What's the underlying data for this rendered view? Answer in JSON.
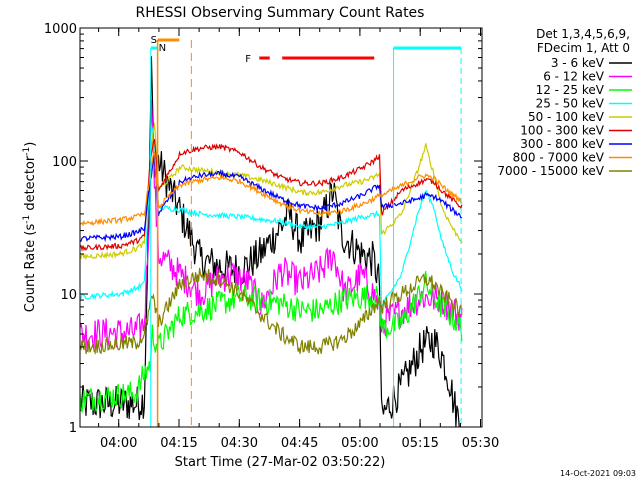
{
  "chart_data": {
    "type": "line",
    "title": "RHESSI Observing Summary Count Rates",
    "xlabel": "Start Time (27-Mar-02 03:50:22)",
    "ylabel_main": "Count Rate (s",
    "ylabel_sup1": "-1",
    "ylabel_mid": " detector",
    "ylabel_sup2": "-1",
    "ylabel_end": ")",
    "x_unit": "minutes since 03:50:22",
    "xlim": [
      0,
      100
    ],
    "ylim": [
      1,
      1000
    ],
    "yscale": "log",
    "x_ticks": [
      {
        "label": "04:00",
        "value": 9.63
      },
      {
        "label": "04:15",
        "value": 24.63
      },
      {
        "label": "04:30",
        "value": 39.63
      },
      {
        "label": "04:45",
        "value": 54.63
      },
      {
        "label": "05:00",
        "value": 69.63
      },
      {
        "label": "05:15",
        "value": 84.63
      },
      {
        "label": "05:30",
        "value": 99.63
      }
    ],
    "y_ticks": [
      {
        "label": "1",
        "value": 1
      },
      {
        "label": "10",
        "value": 10
      },
      {
        "label": "100",
        "value": 100
      },
      {
        "label": "1000",
        "value": 1000
      }
    ],
    "legend": {
      "placement": "right",
      "header": [
        "Det 1,3,4,5,6,9,",
        "FDecim 1, Att 0"
      ]
    },
    "series": [
      {
        "name": "3 - 6 keV",
        "color": "#000000",
        "x": [
          0,
          14,
          16,
          17.3,
          17.8,
          18.2,
          18.8,
          19.5,
          30,
          35,
          40,
          45,
          50,
          52,
          55,
          60,
          63,
          65,
          70,
          73,
          74.5,
          75,
          80,
          85,
          88,
          90,
          92,
          93,
          94,
          95
        ],
        "y": [
          1.5,
          1.5,
          1.6,
          80,
          600,
          130,
          80,
          100,
          18,
          16,
          15,
          20,
          32,
          40,
          25,
          35,
          60,
          28,
          20,
          18,
          12,
          1.2,
          2.0,
          4.0,
          4.5,
          3.5,
          2.2,
          1.5,
          1.2,
          1
        ]
      },
      {
        "name": "6 - 12 keV",
        "color": "#ff00ff",
        "x": [
          0,
          14,
          16,
          17.5,
          17.8,
          18.3,
          19.5,
          30,
          34,
          38,
          42,
          45,
          50,
          55,
          60,
          63,
          66,
          70,
          73,
          74.5,
          75,
          80,
          85,
          90,
          94,
          95
        ],
        "y": [
          5.0,
          5.2,
          6.0,
          60,
          500,
          90,
          20,
          10,
          13,
          14,
          12,
          8,
          15,
          12,
          15,
          20,
          10,
          14,
          10,
          8,
          6.0,
          7.5,
          9.5,
          9.0,
          7.0,
          6.5
        ]
      },
      {
        "name": "12 - 25 keV",
        "color": "#00ff00",
        "x": [
          0,
          14,
          16,
          17.5,
          18,
          19.5,
          25,
          30,
          35,
          40,
          45,
          50,
          55,
          60,
          65,
          70,
          73,
          74.5,
          75,
          80,
          84,
          86,
          88,
          90,
          92,
          94,
          95
        ],
        "y": [
          1.6,
          1.8,
          2.5,
          3,
          5,
          4,
          7.0,
          7.5,
          8.5,
          9.5,
          9.0,
          8.5,
          7.5,
          7.5,
          9.0,
          9.5,
          9.5,
          9.0,
          5.5,
          6.0,
          9.5,
          12,
          9.5,
          8.0,
          7.0,
          6.0,
          5.5
        ]
      },
      {
        "name": "25 - 50 keV",
        "color": "#00ffff",
        "x": [
          0,
          10,
          14,
          16,
          17.2,
          17.8,
          18.5,
          19.5,
          25,
          30,
          40,
          50,
          55,
          60,
          65,
          70,
          74.5,
          75,
          80,
          84,
          86,
          88,
          90,
          93,
          95
        ],
        "y": [
          9.5,
          10,
          11,
          12,
          60,
          200,
          110,
          45,
          43,
          40,
          38,
          35,
          32,
          32,
          34,
          38,
          40,
          8.0,
          14,
          40,
          60,
          45,
          25,
          14,
          11
        ]
      },
      {
        "name": "50 - 100 keV",
        "color": "#cccc00",
        "x": [
          0,
          10,
          14,
          16,
          17.5,
          18.5,
          19.5,
          25,
          30,
          35,
          40,
          45,
          50,
          55,
          60,
          65,
          70,
          73,
          74.5,
          75,
          80,
          84,
          86,
          88,
          90,
          93,
          95
        ],
        "y": [
          19,
          20,
          22,
          24,
          100,
          200,
          60,
          90,
          85,
          82,
          78,
          72,
          65,
          58,
          58,
          65,
          70,
          75,
          80,
          28,
          40,
          85,
          130,
          80,
          45,
          30,
          25
        ]
      },
      {
        "name": "100 - 300 keV",
        "color": "#dd0000",
        "x": [
          0,
          10,
          14,
          16,
          17.5,
          18.5,
          19.5,
          25,
          30,
          35,
          40,
          45,
          50,
          55,
          60,
          65,
          70,
          73,
          74.5,
          75,
          80,
          84,
          86,
          88,
          90,
          93,
          95
        ],
        "y": [
          22,
          23,
          25,
          27,
          100,
          150,
          60,
          115,
          125,
          128,
          115,
          90,
          75,
          68,
          68,
          75,
          88,
          100,
          110,
          40,
          60,
          68,
          72,
          70,
          60,
          50,
          45
        ]
      },
      {
        "name": "300 - 800 keV",
        "color": "#0000ff",
        "x": [
          0,
          10,
          14,
          16,
          17.5,
          18.5,
          19.5,
          25,
          30,
          35,
          40,
          45,
          50,
          55,
          60,
          65,
          70,
          73,
          74.5,
          75,
          80,
          84,
          86,
          88,
          90,
          93,
          95
        ],
        "y": [
          26,
          27,
          29,
          31,
          70,
          110,
          40,
          70,
          78,
          80,
          75,
          62,
          52,
          46,
          44,
          48,
          55,
          62,
          66,
          45,
          48,
          52,
          55,
          54,
          50,
          42,
          38
        ]
      },
      {
        "name": "800 - 7000 keV",
        "color": "#ff8c00",
        "x": [
          0,
          10,
          14,
          16,
          17.5,
          18.5,
          19.5,
          25,
          30,
          35,
          40,
          45,
          50,
          55,
          60,
          65,
          70,
          73,
          74.5,
          75,
          80,
          84,
          86,
          88,
          90,
          93,
          95
        ],
        "y": [
          34,
          36,
          38,
          40,
          80,
          120,
          45,
          66,
          72,
          75,
          70,
          58,
          48,
          42,
          40,
          42,
          47,
          52,
          55,
          55,
          65,
          75,
          78,
          74,
          65,
          55,
          50
        ]
      },
      {
        "name": "7000 - 15000 keV",
        "color": "#808000",
        "x": [
          0,
          10,
          14,
          16,
          17.5,
          18,
          19.5,
          25,
          30,
          35,
          40,
          45,
          50,
          55,
          60,
          65,
          70,
          73,
          74.5,
          75,
          80,
          84,
          86,
          88,
          90,
          93,
          95
        ],
        "y": [
          4.0,
          4.2,
          4.3,
          5.0,
          8,
          10,
          6,
          12,
          14,
          13,
          10,
          7.0,
          5.0,
          4.0,
          4.0,
          4.5,
          6.0,
          8.0,
          9.0,
          8.0,
          10,
          12,
          13,
          12,
          10,
          8.5,
          7.0
        ]
      }
    ],
    "annotations": {
      "saa_label": "S",
      "night_label": "N",
      "flare_label": "F",
      "saa": [
        {
          "start": 19.3,
          "end": 27.7
        }
      ],
      "night": [
        {
          "start": 17.6,
          "end": 19.3
        },
        {
          "start": 78.0,
          "end": 94.8
        }
      ],
      "flare": [
        {
          "start": 44.6,
          "end": 47.2
        },
        {
          "start": 50.3,
          "end": 73.2
        }
      ],
      "saa_color": "#ff8c00",
      "night_color": "#00ffff",
      "flare_color": "#ff0000"
    }
  },
  "timestamp": "14-Oct-2021 09:03"
}
